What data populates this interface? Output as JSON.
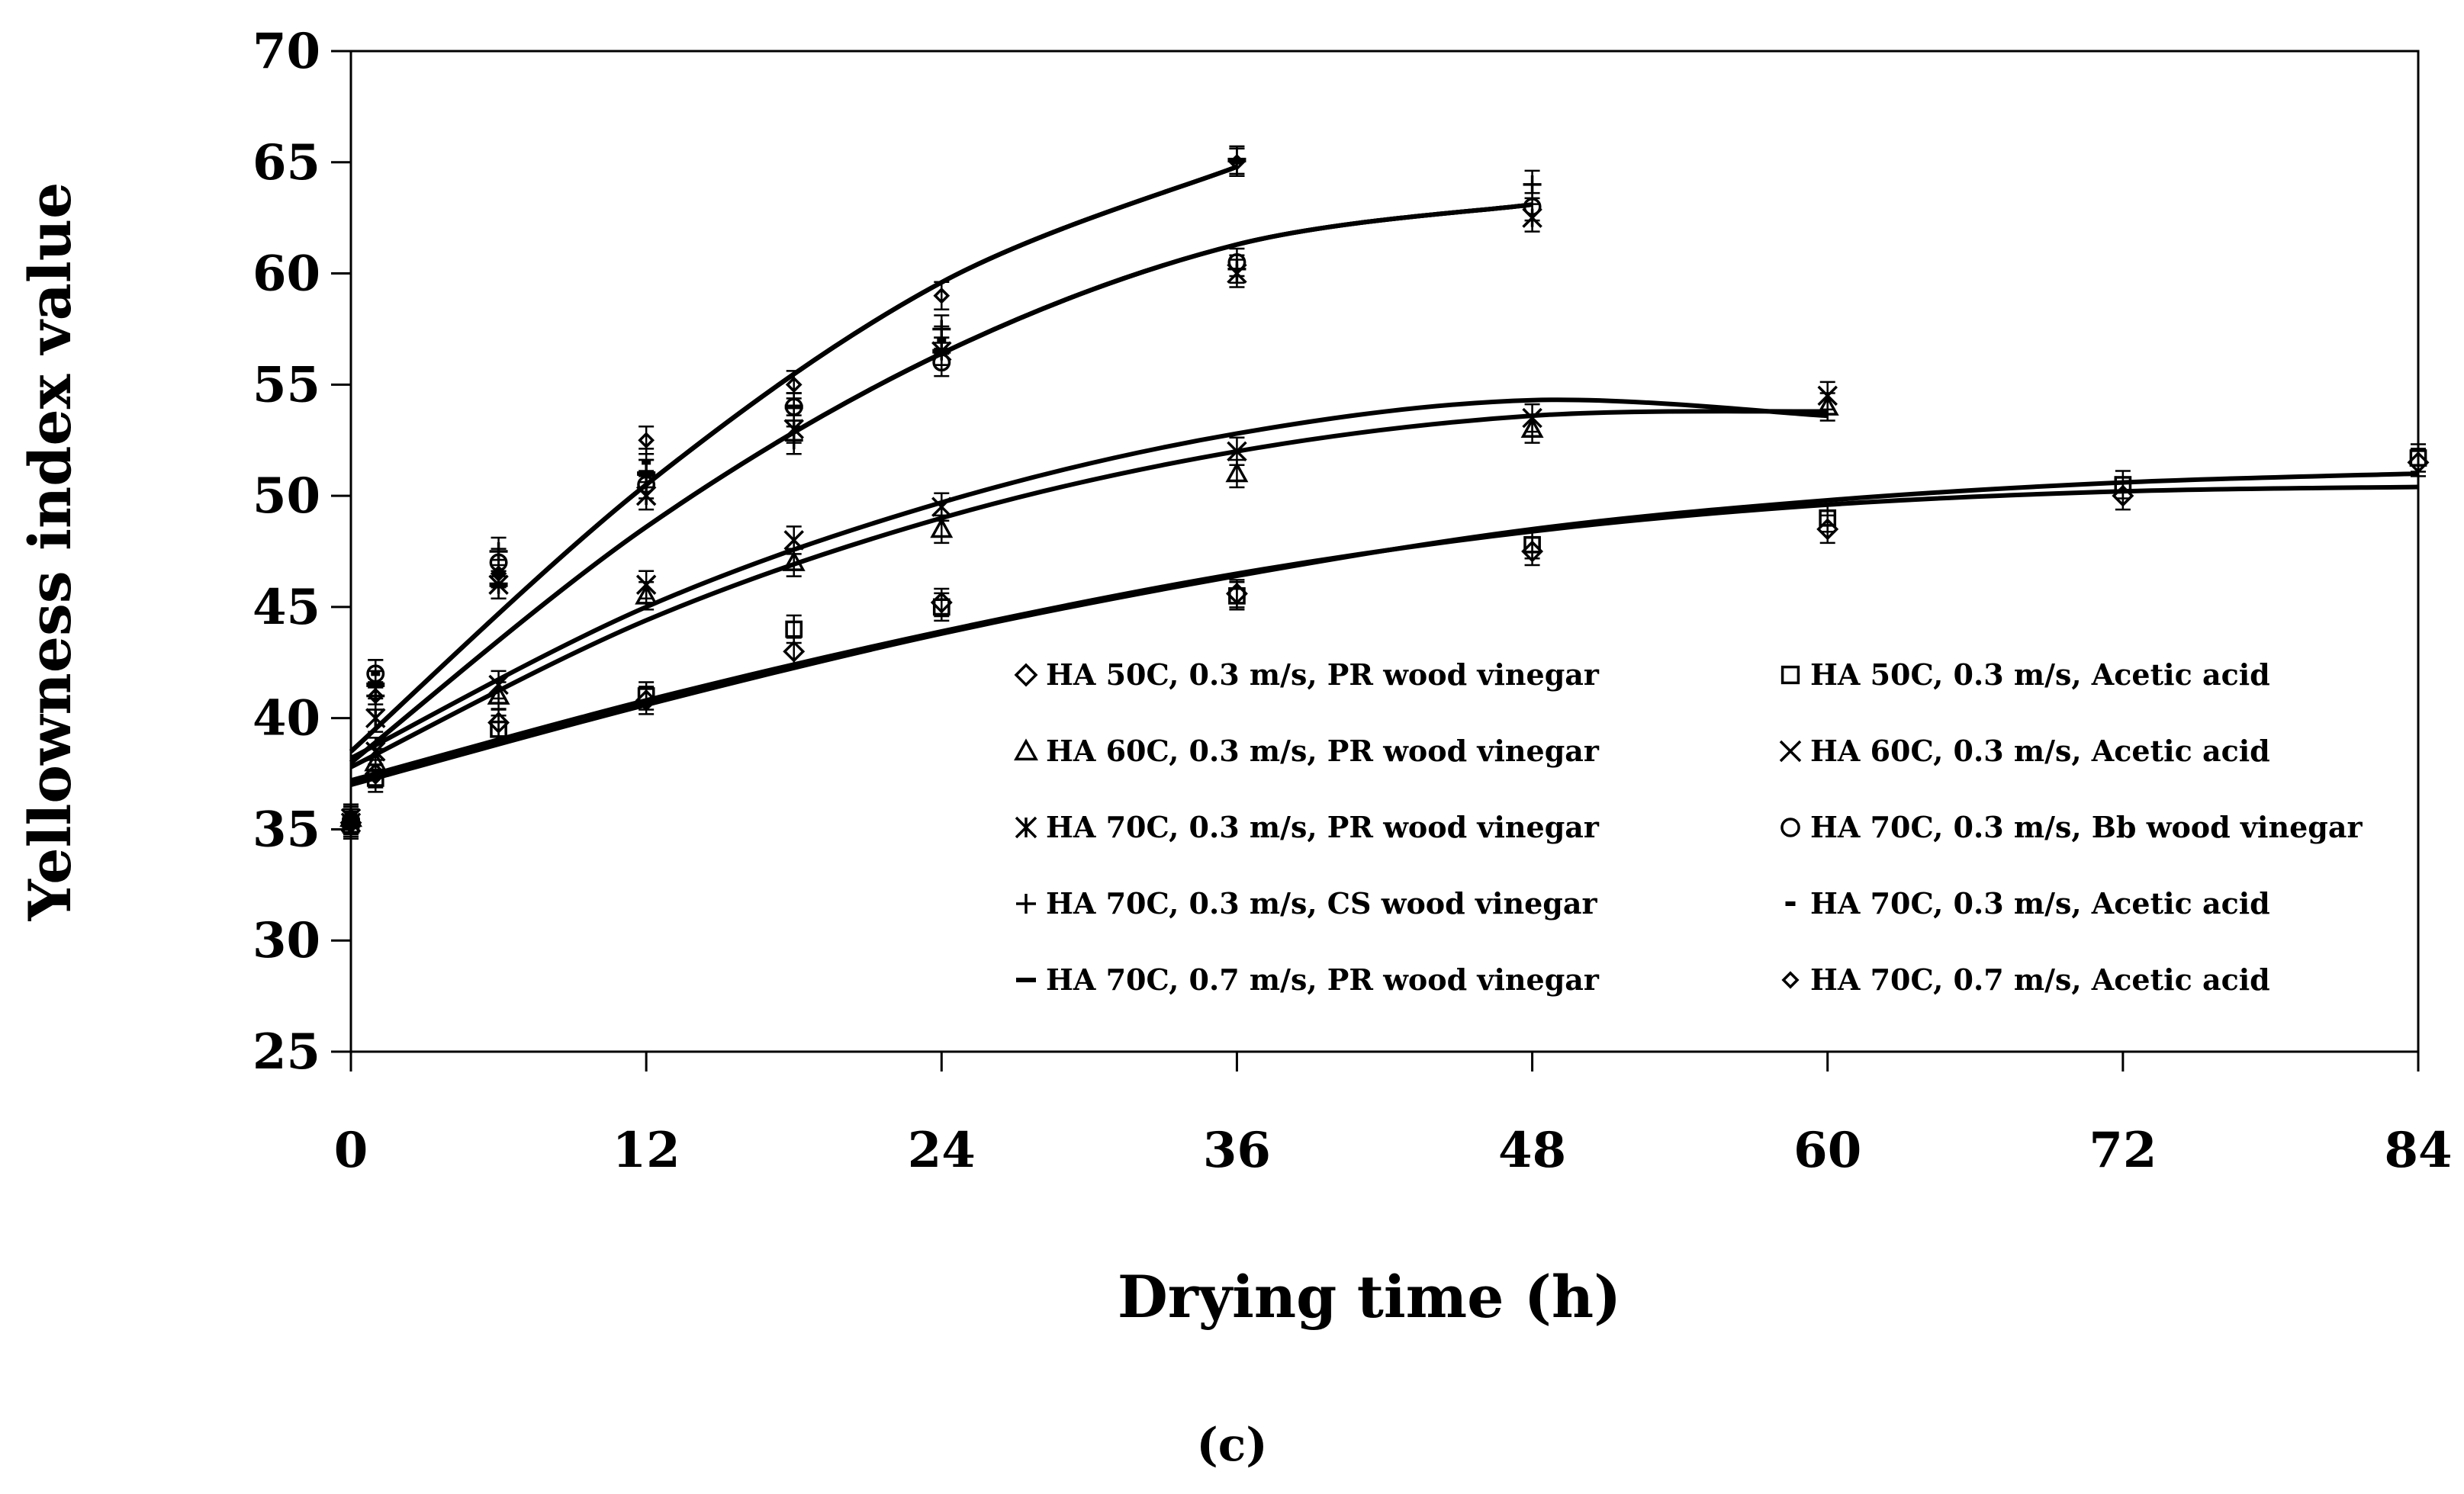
{
  "chart_data": {
    "type": "scatter",
    "title": "",
    "caption": "(c)",
    "xlabel": "Drying time (h)",
    "ylabel": "Yellowness index value",
    "xlim": [
      0,
      84
    ],
    "ylim": [
      25,
      70
    ],
    "xticks": [
      0,
      12,
      24,
      36,
      48,
      60,
      72,
      84
    ],
    "yticks": [
      25,
      30,
      35,
      40,
      45,
      50,
      55,
      60,
      65,
      70
    ],
    "legend_position": "bottom-right inside plot",
    "series": [
      {
        "name": "HA 50C, 0.3 m/s, PR wood vinegar",
        "marker": "diamond",
        "x": [
          0,
          1,
          6,
          12,
          18,
          24,
          36,
          48,
          60,
          72,
          84
        ],
        "y": [
          35.3,
          37.5,
          39.8,
          40.8,
          43.0,
          45.2,
          45.6,
          47.5,
          48.5,
          50.0,
          51.5
        ],
        "fit": [
          [
            0,
            37.0
          ],
          [
            12,
            40.6
          ],
          [
            24,
            43.8
          ],
          [
            36,
            46.4
          ],
          [
            48,
            48.5
          ],
          [
            60,
            49.8
          ],
          [
            72,
            50.6
          ],
          [
            84,
            51.0
          ]
        ]
      },
      {
        "name": "HA 50C, 0.3 m/s, Acetic acid",
        "marker": "square",
        "x": [
          0,
          1,
          6,
          12,
          18,
          24,
          36,
          48,
          60,
          72,
          84
        ],
        "y": [
          35.2,
          37.3,
          39.5,
          41.0,
          44.0,
          45.0,
          45.5,
          47.8,
          49.0,
          50.5,
          51.7
        ],
        "fit": [
          [
            0,
            37.2
          ],
          [
            12,
            40.8
          ],
          [
            24,
            43.9
          ],
          [
            36,
            46.5
          ],
          [
            48,
            48.4
          ],
          [
            60,
            49.6
          ],
          [
            72,
            50.2
          ],
          [
            84,
            50.4
          ]
        ]
      },
      {
        "name": "HA 60C, 0.3 m/s, PR wood vinegar",
        "marker": "triangle",
        "x": [
          0,
          1,
          6,
          12,
          18,
          24,
          36,
          48,
          60
        ],
        "y": [
          35.5,
          38.0,
          41.0,
          45.5,
          47.0,
          48.5,
          51.0,
          53.0,
          54.0
        ],
        "fit": [
          [
            0,
            37.8
          ],
          [
            12,
            44.4
          ],
          [
            24,
            49.0
          ],
          [
            36,
            52.0
          ],
          [
            48,
            53.6
          ],
          [
            60,
            53.8
          ]
        ]
      },
      {
        "name": "HA 60C, 0.3 m/s, Acetic acid",
        "marker": "x",
        "x": [
          0,
          1,
          6,
          12,
          18,
          24,
          36,
          48,
          60
        ],
        "y": [
          35.3,
          38.5,
          41.5,
          46.0,
          48.0,
          49.5,
          52.0,
          53.5,
          54.5
        ],
        "fit": [
          [
            0,
            38.2
          ],
          [
            12,
            45.0
          ],
          [
            24,
            49.7
          ],
          [
            36,
            52.8
          ],
          [
            48,
            54.3
          ],
          [
            60,
            53.6
          ]
        ]
      },
      {
        "name": "HA 70C, 0.3 m/s, PR wood vinegar",
        "marker": "asterisk",
        "x": [
          0,
          1,
          6,
          12,
          18,
          24,
          36,
          48
        ],
        "y": [
          35.5,
          40.0,
          46.0,
          50.0,
          53.0,
          56.5,
          60.0,
          62.5
        ],
        "fit": [
          [
            0,
            38.0
          ],
          [
            12,
            48.6
          ],
          [
            24,
            56.4
          ],
          [
            36,
            61.3
          ],
          [
            48,
            63.1
          ]
        ]
      },
      {
        "name": "HA 70C, 0.3 m/s, Bb wood vinegar",
        "marker": "circle",
        "x": [
          0,
          1,
          6,
          12,
          18,
          24,
          36,
          48
        ],
        "y": [
          35.4,
          42.0,
          47.0,
          50.5,
          54.0,
          56.0,
          60.5,
          63.0
        ],
        "fit": [
          [
            0,
            38.0
          ],
          [
            12,
            48.6
          ],
          [
            24,
            56.4
          ],
          [
            36,
            61.3
          ],
          [
            48,
            63.1
          ]
        ]
      },
      {
        "name": "HA 70C, 0.3 m/s, CS wood vinegar",
        "marker": "plus",
        "x": [
          0,
          1,
          6,
          12,
          18,
          24,
          36,
          48
        ],
        "y": [
          35.2,
          41.0,
          47.5,
          51.0,
          52.5,
          57.5,
          60.2,
          64.0
        ],
        "fit": [
          [
            0,
            38.0
          ],
          [
            12,
            48.6
          ],
          [
            24,
            56.4
          ],
          [
            36,
            61.3
          ],
          [
            48,
            63.1
          ]
        ]
      },
      {
        "name": "HA 70C, 0.3 m/s, Acetic acid",
        "marker": "dash",
        "x": [
          0,
          1,
          6,
          12,
          18,
          24,
          36
        ],
        "y": [
          35.3,
          42.0,
          46.5,
          51.5,
          54.0,
          57.0,
          65.0
        ],
        "fit": [
          [
            0,
            38.5
          ],
          [
            12,
            50.5
          ],
          [
            24,
            59.6
          ],
          [
            36,
            64.8
          ]
        ]
      },
      {
        "name": "HA 70C, 0.7 m/s, PR wood vinegar",
        "marker": "longdash",
        "x": [
          0,
          1,
          6,
          12,
          18,
          24,
          36
        ],
        "y": [
          35.4,
          41.5,
          46.0,
          51.0,
          54.0,
          56.5,
          65.1
        ],
        "fit": [
          [
            0,
            38.5
          ],
          [
            12,
            50.5
          ],
          [
            24,
            59.6
          ],
          [
            36,
            64.8
          ]
        ]
      },
      {
        "name": "HA 70C, 0.7 m/s, Acetic acid",
        "marker": "smalldiamond",
        "x": [
          0,
          1,
          6,
          12,
          18,
          24,
          36
        ],
        "y": [
          35.5,
          41.0,
          46.5,
          52.5,
          55.0,
          59.0,
          65.0
        ],
        "fit": [
          [
            0,
            38.5
          ],
          [
            12,
            50.5
          ],
          [
            24,
            59.6
          ],
          [
            36,
            64.8
          ]
        ]
      }
    ]
  }
}
